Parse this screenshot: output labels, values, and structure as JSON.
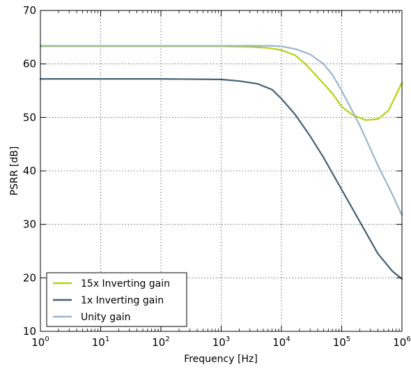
{
  "chart_data": {
    "type": "line",
    "xlabel": "Frequency [Hz]",
    "ylabel": "PSRR [dB]",
    "xscale": "log",
    "xlim": [
      1,
      1000000
    ],
    "ylim": [
      10,
      70
    ],
    "x_ticks": [
      {
        "base": "10",
        "exp": "0"
      },
      {
        "base": "10",
        "exp": "1"
      },
      {
        "base": "10",
        "exp": "2"
      },
      {
        "base": "10",
        "exp": "3"
      },
      {
        "base": "10",
        "exp": "4"
      },
      {
        "base": "10",
        "exp": "5"
      },
      {
        "base": "10",
        "exp": "6"
      }
    ],
    "y_ticks": [
      10,
      20,
      30,
      40,
      50,
      60,
      70
    ],
    "grid": true,
    "legend_position": "bottom-left",
    "series": [
      {
        "name": "15x Inverting gain",
        "color": "#b5d20f",
        "points": [
          [
            1,
            63.3
          ],
          [
            100,
            63.3
          ],
          [
            1000,
            63.3
          ],
          [
            3000,
            63.2
          ],
          [
            6000,
            63.0
          ],
          [
            10000,
            62.6
          ],
          [
            17000,
            61.6
          ],
          [
            25000,
            60.0
          ],
          [
            40000,
            57.5
          ],
          [
            70000,
            54.5
          ],
          [
            100000,
            52.0
          ],
          [
            150000,
            50.5
          ],
          [
            250000,
            49.5
          ],
          [
            400000,
            49.7
          ],
          [
            600000,
            51.3
          ],
          [
            1000000,
            56.5
          ]
        ]
      },
      {
        "name": "1x Inverting gain",
        "color": "#44606f",
        "points": [
          [
            1,
            57.2
          ],
          [
            100,
            57.2
          ],
          [
            1000,
            57.1
          ],
          [
            2000,
            56.8
          ],
          [
            4000,
            56.3
          ],
          [
            7000,
            55.2
          ],
          [
            10000,
            53.5
          ],
          [
            17000,
            50.5
          ],
          [
            30000,
            46.5
          ],
          [
            50000,
            42.5
          ],
          [
            100000,
            36.5
          ],
          [
            200000,
            30.5
          ],
          [
            400000,
            24.5
          ],
          [
            700000,
            21.2
          ],
          [
            1000000,
            19.8
          ]
        ]
      },
      {
        "name": "Unity gain",
        "color": "#9ab6cc",
        "points": [
          [
            1,
            63.4
          ],
          [
            100,
            63.4
          ],
          [
            1000,
            63.4
          ],
          [
            6000,
            63.4
          ],
          [
            10000,
            63.3
          ],
          [
            17000,
            62.8
          ],
          [
            30000,
            61.8
          ],
          [
            50000,
            60.0
          ],
          [
            70000,
            58.0
          ],
          [
            100000,
            55.0
          ],
          [
            200000,
            48.5
          ],
          [
            400000,
            41.0
          ],
          [
            700000,
            35.5
          ],
          [
            1000000,
            31.7
          ]
        ]
      }
    ]
  }
}
